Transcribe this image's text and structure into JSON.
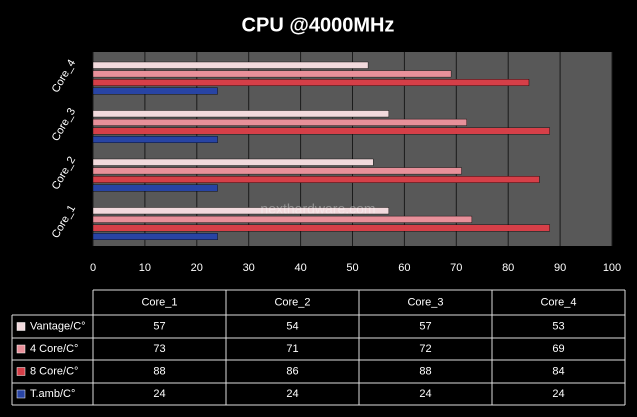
{
  "chart_data": {
    "type": "hbar",
    "title": "CPU @4000MHz",
    "categories": [
      "Core_1",
      "Core_2",
      "Core_3",
      "Core_4"
    ],
    "series": [
      {
        "name": "Vantage/C°",
        "color": "#f2dadd",
        "values": [
          57,
          54,
          57,
          53
        ]
      },
      {
        "name": "4 Core/C°",
        "color": "#e8909a",
        "values": [
          73,
          71,
          72,
          69
        ]
      },
      {
        "name": "8 Core/C°",
        "color": "#d63f48",
        "values": [
          88,
          86,
          88,
          84
        ]
      },
      {
        "name": "T.amb/C°",
        "color": "#2844a4",
        "values": [
          24,
          24,
          24,
          24
        ]
      }
    ],
    "xlim": [
      0,
      100
    ],
    "xticks": [
      0,
      10,
      20,
      30,
      40,
      50,
      60,
      70,
      80,
      90,
      100
    ],
    "grid": true,
    "watermark": "nexthardware.com"
  }
}
